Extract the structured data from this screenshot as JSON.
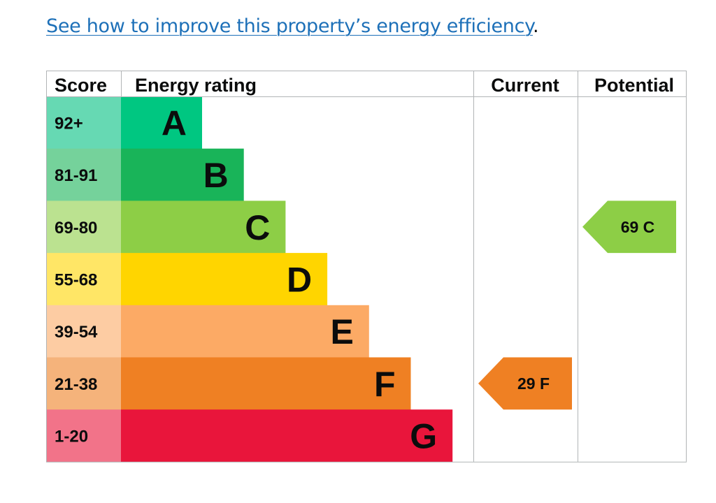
{
  "intro": {
    "link_text": "See how to improve this property’s energy efficiency",
    "trailing": "."
  },
  "chart_data": {
    "type": "bar",
    "columns": {
      "score": "Score",
      "rating": "Energy rating",
      "current": "Current",
      "potential": "Potential"
    },
    "bands": [
      {
        "letter": "A",
        "range": "92+",
        "min": 92,
        "max": 100,
        "color": "#00c781",
        "score_bg": "#66d9b3"
      },
      {
        "letter": "B",
        "range": "81-91",
        "min": 81,
        "max": 91,
        "color": "#19b459",
        "score_bg": "#75d29b"
      },
      {
        "letter": "C",
        "range": "69-80",
        "min": 69,
        "max": 80,
        "color": "#8dce46",
        "score_bg": "#bbe290"
      },
      {
        "letter": "D",
        "range": "55-68",
        "min": 55,
        "max": 68,
        "color": "#ffd500",
        "score_bg": "#ffe666"
      },
      {
        "letter": "E",
        "range": "39-54",
        "min": 39,
        "max": 54,
        "color": "#fcaa65",
        "score_bg": "#fdcca3"
      },
      {
        "letter": "F",
        "range": "21-38",
        "min": 21,
        "max": 38,
        "color": "#ef8023",
        "score_bg": "#f5b37b"
      },
      {
        "letter": "G",
        "range": "1-20",
        "min": 1,
        "max": 20,
        "color": "#e9153b",
        "score_bg": "#f27389"
      }
    ],
    "current": {
      "value": 29,
      "letter": "F",
      "color": "#ef8023"
    },
    "potential": {
      "value": 69,
      "letter": "C",
      "color": "#8dce46"
    }
  }
}
